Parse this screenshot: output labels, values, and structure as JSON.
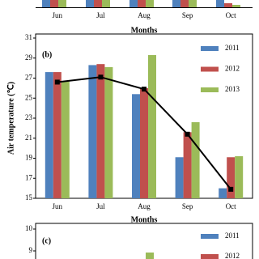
{
  "chart_data": [
    {
      "type": "bar",
      "categories": [
        "Jun",
        "Jul",
        "Aug",
        "Sep",
        "Oct"
      ],
      "x_label": "Months"
    },
    {
      "type": "bar",
      "title": "(b)",
      "y_label": "Air temperature (℃)",
      "x_label": "Months",
      "categories": [
        "Jun",
        "Jul",
        "Aug",
        "Sep",
        "Oct"
      ],
      "ylim": [
        15,
        31
      ],
      "yticks": [
        15,
        17,
        19,
        21,
        23,
        25,
        27,
        29,
        31
      ],
      "series": [
        {
          "name": "2011",
          "color": "#4f81bd",
          "values": [
            27.6,
            28.3,
            25.4,
            19.1,
            16.0
          ]
        },
        {
          "name": "2012",
          "color": "#c0504d",
          "values": [
            27.6,
            28.4,
            26.0,
            21.6,
            19.1
          ]
        },
        {
          "name": "2013",
          "color": "#9bbb59",
          "values": [
            26.7,
            28.1,
            29.3,
            22.6,
            19.2
          ]
        }
      ],
      "line": {
        "color": "#000000",
        "marker": "square",
        "values": [
          26.6,
          27.1,
          25.9,
          21.4,
          15.9
        ]
      }
    },
    {
      "type": "bar",
      "title": "(c)",
      "yticks": [
        9,
        10
      ],
      "series": [
        {
          "name": "2011",
          "color": "#4f81bd"
        },
        {
          "name": "2012",
          "color": "#c0504d"
        }
      ]
    }
  ]
}
